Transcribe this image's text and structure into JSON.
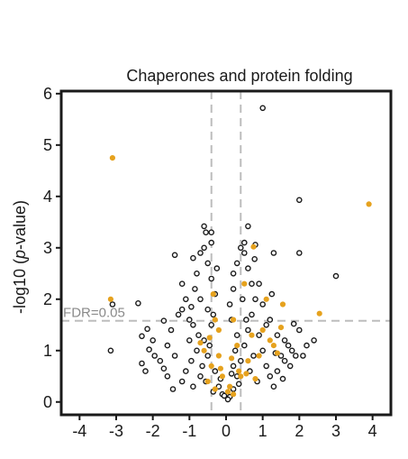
{
  "chart_data": {
    "type": "scatter",
    "title": "Chaperones and protein folding",
    "ylabel": "-log10 (p-value)",
    "ylabel_parts": [
      "-log10 (",
      "p",
      "-value)"
    ],
    "xlabel": "",
    "xlim": [
      -4.5,
      4.5
    ],
    "ylim": [
      -0.25,
      6.05
    ],
    "xticks": [
      "-4",
      "-3",
      "-2",
      "-1",
      "0",
      "1",
      "2",
      "3",
      "4"
    ],
    "yticks": [
      "0",
      "1",
      "2",
      "3",
      "4",
      "5",
      "6"
    ],
    "grid": false,
    "threshold_y": 1.58,
    "threshold_label": "FDR=0.05",
    "fold_change_lines": [
      -0.4,
      0.4
    ],
    "colors": {
      "background_points": "#1a1a1a",
      "highlight_points": "#e6a21e",
      "threshold_lines": "#bdbdbd",
      "axis": "#1a1a1a"
    },
    "series": [
      {
        "role": "background",
        "points": [
          [
            1.0,
            5.72
          ],
          [
            2.0,
            3.93
          ],
          [
            2.0,
            2.9
          ],
          [
            3.0,
            2.45
          ],
          [
            1.85,
            1.52
          ],
          [
            -3.15,
            1.0
          ],
          [
            -2.4,
            1.92
          ],
          [
            -3.1,
            1.9
          ],
          [
            -2.3,
            0.75
          ],
          [
            -2.1,
            1.02
          ],
          [
            -2.3,
            1.28
          ],
          [
            -1.7,
            1.58
          ],
          [
            -1.95,
            0.9
          ],
          [
            -2.2,
            0.6
          ],
          [
            -2.15,
            1.42
          ],
          [
            -1.4,
            2.86
          ],
          [
            -0.6,
            3.42
          ],
          [
            -0.4,
            3.3
          ],
          [
            -0.55,
            3.3
          ],
          [
            -0.4,
            3.1
          ],
          [
            0.6,
            3.42
          ],
          [
            0.5,
            3.1
          ],
          [
            0.4,
            3.0
          ],
          [
            0.8,
            3.06
          ],
          [
            0.78,
            2.78
          ],
          [
            0.2,
            2.5
          ],
          [
            2.0,
            1.4
          ],
          [
            2.2,
            1.1
          ],
          [
            2.4,
            1.2
          ],
          [
            1.9,
            0.9
          ],
          [
            -1.2,
            1.8
          ],
          [
            -1.0,
            1.2
          ],
          [
            1.6,
            0.8
          ],
          [
            1.3,
            2.9
          ],
          [
            -0.9,
            2.8
          ],
          [
            -1.2,
            2.3
          ],
          [
            -1.1,
            2.0
          ],
          [
            -1.3,
            1.7
          ],
          [
            -1.5,
            1.4
          ],
          [
            -1.6,
            1.1
          ],
          [
            -1.8,
            0.8
          ],
          [
            -1.6,
            0.5
          ],
          [
            -1.2,
            0.4
          ],
          [
            -0.9,
            0.3
          ],
          [
            -0.7,
            0.5
          ],
          [
            -0.8,
            1.0
          ],
          [
            -0.9,
            1.5
          ],
          [
            -0.7,
            2.0
          ],
          [
            -0.8,
            2.5
          ],
          [
            -0.6,
            3.0
          ],
          [
            -0.5,
            2.7
          ],
          [
            -0.4,
            2.4
          ],
          [
            -0.3,
            2.1
          ],
          [
            -0.5,
            1.8
          ],
          [
            -0.4,
            1.5
          ],
          [
            -0.6,
            1.2
          ],
          [
            -0.5,
            0.9
          ],
          [
            -0.3,
            0.6
          ],
          [
            -0.2,
            0.3
          ],
          [
            -0.1,
            0.15
          ],
          [
            0.1,
            0.1
          ],
          [
            0.2,
            0.25
          ],
          [
            0.3,
            0.5
          ],
          [
            0.4,
            0.8
          ],
          [
            0.5,
            1.1
          ],
          [
            0.6,
            1.4
          ],
          [
            0.7,
            1.7
          ],
          [
            0.8,
            2.0
          ],
          [
            0.7,
            2.3
          ],
          [
            0.6,
            2.6
          ],
          [
            0.5,
            2.9
          ],
          [
            0.3,
            2.7
          ],
          [
            0.2,
            2.2
          ],
          [
            0.1,
            1.9
          ],
          [
            0.15,
            1.6
          ],
          [
            0.3,
            1.3
          ],
          [
            0.25,
            1.0
          ],
          [
            0.2,
            0.7
          ],
          [
            0.9,
            1.3
          ],
          [
            1.0,
            1.0
          ],
          [
            1.1,
            0.7
          ],
          [
            1.2,
            0.5
          ],
          [
            1.3,
            0.3
          ],
          [
            1.4,
            0.6
          ],
          [
            1.5,
            0.9
          ],
          [
            1.6,
            1.2
          ],
          [
            1.7,
            1.1
          ],
          [
            1.2,
            1.6
          ],
          [
            1.0,
            1.9
          ],
          [
            0.9,
            2.3
          ],
          [
            1.1,
            1.5
          ],
          [
            1.4,
            1.3
          ],
          [
            1.8,
            1.0
          ],
          [
            2.1,
            0.9
          ],
          [
            -1.4,
            0.9
          ],
          [
            -1.1,
            0.6
          ],
          [
            -0.95,
            0.8
          ],
          [
            -1.0,
            1.6
          ],
          [
            -0.75,
            1.3
          ],
          [
            -0.65,
            0.7
          ],
          [
            -0.55,
            0.4
          ],
          [
            -0.35,
            0.2
          ],
          [
            -0.45,
            1.1
          ],
          [
            -0.35,
            1.7
          ],
          [
            -0.25,
            2.6
          ],
          [
            -0.7,
            2.9
          ],
          [
            -0.85,
            2.2
          ],
          [
            -0.95,
            1.85
          ],
          [
            0.45,
            2.0
          ],
          [
            0.55,
            1.6
          ],
          [
            0.65,
            0.6
          ],
          [
            0.75,
            0.9
          ],
          [
            0.85,
            0.4
          ],
          [
            0.35,
            0.35
          ],
          [
            0.05,
            0.05
          ],
          [
            -0.05,
            0.12
          ],
          [
            -0.15,
            0.45
          ],
          [
            0.15,
            0.55
          ],
          [
            1.25,
            2.1
          ],
          [
            1.35,
            0.95
          ],
          [
            1.55,
            0.45
          ],
          [
            1.75,
            0.7
          ],
          [
            -1.7,
            0.65
          ],
          [
            -1.45,
            0.25
          ],
          [
            -2.0,
            1.2
          ]
        ]
      },
      {
        "role": "highlight",
        "points": [
          [
            -3.1,
            4.75
          ],
          [
            3.9,
            3.85
          ],
          [
            -3.15,
            2.0
          ],
          [
            2.55,
            1.72
          ],
          [
            1.55,
            1.9
          ],
          [
            1.5,
            1.45
          ],
          [
            0.75,
            3.02
          ],
          [
            1.1,
            2.0
          ],
          [
            -0.35,
            2.1
          ],
          [
            -0.3,
            1.6
          ],
          [
            -0.2,
            1.4
          ],
          [
            0.2,
            1.6
          ],
          [
            0.5,
            2.3
          ],
          [
            0.3,
            1.1
          ],
          [
            0.6,
            0.8
          ],
          [
            0.9,
            0.9
          ],
          [
            1.2,
            1.2
          ],
          [
            1.4,
            0.95
          ],
          [
            0.4,
            0.5
          ],
          [
            0.1,
            0.3
          ],
          [
            -0.1,
            0.5
          ],
          [
            -0.2,
            0.9
          ],
          [
            -0.4,
            0.7
          ],
          [
            -0.6,
            1.0
          ],
          [
            -0.5,
            0.4
          ],
          [
            -0.3,
            0.25
          ],
          [
            0.05,
            0.2
          ],
          [
            0.2,
            0.15
          ],
          [
            0.15,
            0.85
          ],
          [
            0.7,
            1.3
          ],
          [
            1.0,
            1.4
          ],
          [
            1.3,
            1.1
          ],
          [
            -0.45,
            1.25
          ],
          [
            -0.15,
            0.65
          ],
          [
            0.35,
            0.6
          ],
          [
            0.55,
            0.55
          ],
          [
            0.8,
            0.45
          ],
          [
            -0.7,
            1.15
          ]
        ]
      }
    ]
  }
}
